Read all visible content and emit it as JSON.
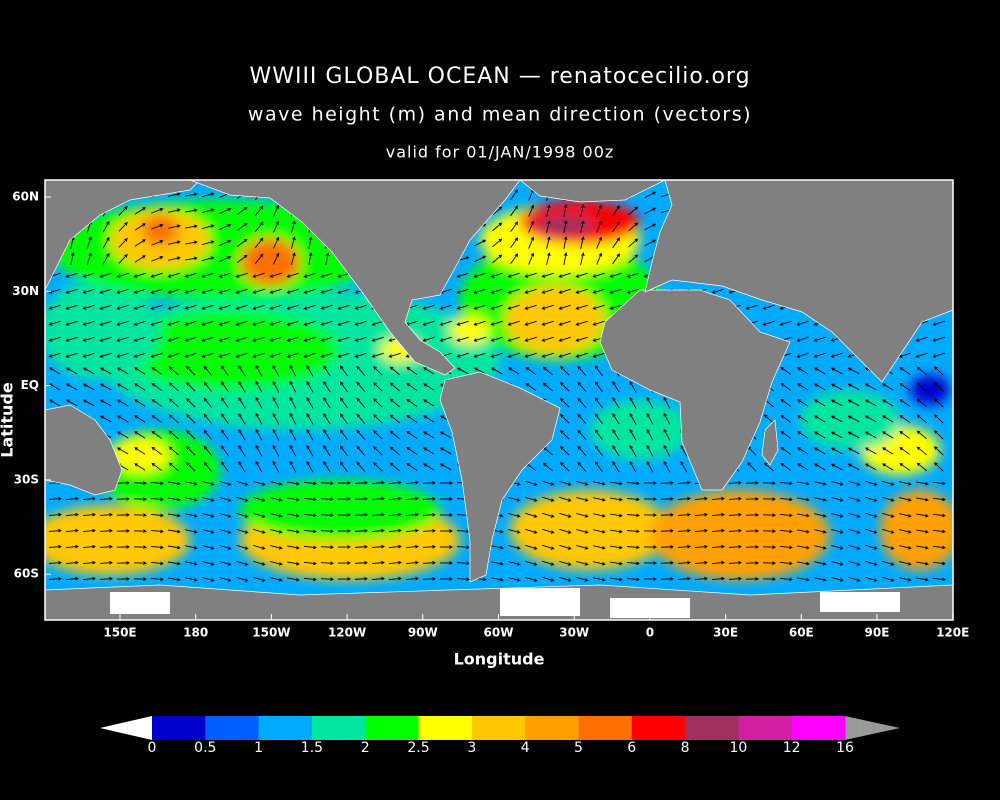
{
  "header": {
    "title": "WWIII GLOBAL OCEAN — renatocecilio.org",
    "subtitle": "wave height (m) and mean direction (vectors)",
    "valid": "valid for 01/JAN/1998 00z"
  },
  "map": {
    "x_label": "Longitude",
    "y_label": "Latitude",
    "x_ticks": [
      "150E",
      "180",
      "150W",
      "120W",
      "90W",
      "60W",
      "30W",
      "0",
      "30E",
      "60E",
      "90E",
      "120E"
    ],
    "y_ticks": [
      "60N",
      "30N",
      "EQ",
      "30S",
      "60S"
    ]
  },
  "legend": {
    "labels": [
      "0",
      "0.5",
      "1",
      "1.5",
      "2",
      "2.5",
      "3",
      "4",
      "5",
      "6",
      "8",
      "10",
      "12",
      "16"
    ],
    "colors": [
      "#0000cc",
      "#0060ff",
      "#00aaff",
      "#00e6a0",
      "#00ff00",
      "#ffff00",
      "#ffc800",
      "#ffa000",
      "#ff7000",
      "#ff0000",
      "#a03060",
      "#d020a0",
      "#ff00ff"
    ]
  }
}
